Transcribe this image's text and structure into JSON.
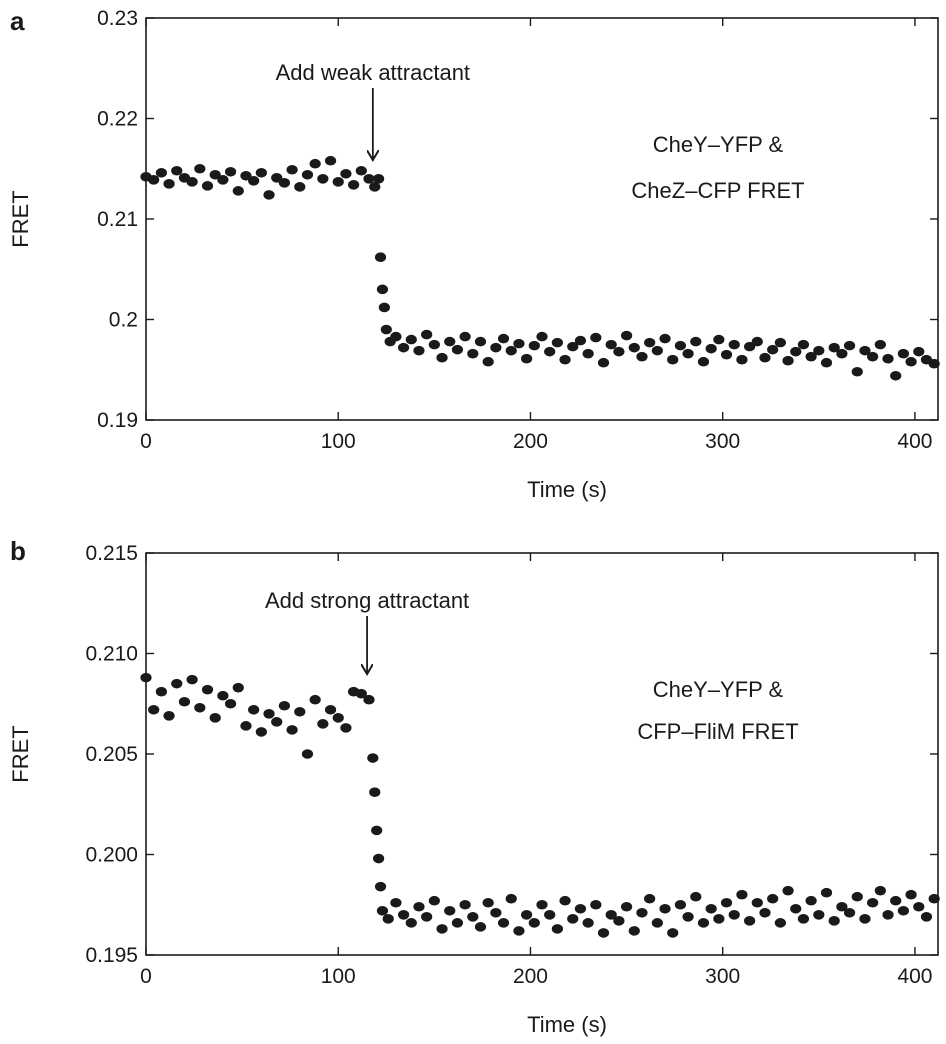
{
  "chart_data": [
    {
      "type": "scatter",
      "panel_label": "a",
      "xlabel": "Time (s)",
      "ylabel": "FRET",
      "xlim": [
        0,
        412
      ],
      "ylim": [
        0.19,
        0.23
      ],
      "xticks": [
        "0",
        "100",
        "200",
        "300",
        "400"
      ],
      "yticks": [
        "0.19",
        "0.2",
        "0.21",
        "0.22",
        "0.23"
      ],
      "annotation": "Add weak attractant",
      "annotation_x": 118,
      "legend_lines": [
        "CheY–YFP &",
        "CheZ–CFP FRET"
      ],
      "color": "#1a1a1a",
      "x": [
        0,
        4,
        8,
        12,
        16,
        20,
        24,
        28,
        32,
        36,
        40,
        44,
        48,
        52,
        56,
        60,
        64,
        68,
        72,
        76,
        80,
        84,
        88,
        92,
        96,
        100,
        104,
        108,
        112,
        116,
        119,
        121,
        122,
        123,
        124,
        125,
        127,
        130,
        134,
        138,
        142,
        146,
        150,
        154,
        158,
        162,
        166,
        170,
        174,
        178,
        182,
        186,
        190,
        194,
        198,
        202,
        206,
        210,
        214,
        218,
        222,
        226,
        230,
        234,
        238,
        242,
        246,
        250,
        254,
        258,
        262,
        266,
        270,
        274,
        278,
        282,
        286,
        290,
        294,
        298,
        302,
        306,
        310,
        314,
        318,
        322,
        326,
        330,
        334,
        338,
        342,
        346,
        350,
        354,
        358,
        362,
        366,
        370,
        374,
        378,
        382,
        386,
        390,
        394,
        398,
        402,
        406,
        410
      ],
      "y": [
        0.2142,
        0.2139,
        0.2146,
        0.2135,
        0.2148,
        0.2141,
        0.2137,
        0.215,
        0.2133,
        0.2144,
        0.2139,
        0.2147,
        0.2128,
        0.2143,
        0.2138,
        0.2146,
        0.2124,
        0.2141,
        0.2136,
        0.2149,
        0.2132,
        0.2144,
        0.2155,
        0.214,
        0.2158,
        0.2137,
        0.2145,
        0.2134,
        0.2148,
        0.214,
        0.2132,
        0.214,
        0.2062,
        0.203,
        0.2012,
        0.199,
        0.1978,
        0.1983,
        0.1972,
        0.198,
        0.1969,
        0.1985,
        0.1975,
        0.1962,
        0.1978,
        0.197,
        0.1983,
        0.1966,
        0.1978,
        0.1958,
        0.1972,
        0.1981,
        0.1969,
        0.1976,
        0.1961,
        0.1974,
        0.1983,
        0.1968,
        0.1977,
        0.196,
        0.1973,
        0.1979,
        0.1966,
        0.1982,
        0.1957,
        0.1975,
        0.1968,
        0.1984,
        0.1972,
        0.1963,
        0.1977,
        0.1969,
        0.1981,
        0.196,
        0.1974,
        0.1966,
        0.1978,
        0.1958,
        0.1971,
        0.198,
        0.1965,
        0.1975,
        0.196,
        0.1973,
        0.1978,
        0.1962,
        0.197,
        0.1977,
        0.1959,
        0.1968,
        0.1975,
        0.1963,
        0.1969,
        0.1957,
        0.1972,
        0.1966,
        0.1974,
        0.1948,
        0.1969,
        0.1963,
        0.1975,
        0.1961,
        0.1944,
        0.1966,
        0.1958,
        0.1968,
        0.196,
        0.1956
      ]
    },
    {
      "type": "scatter",
      "panel_label": "b",
      "xlabel": "Time (s)",
      "ylabel": "FRET",
      "xlim": [
        0,
        412
      ],
      "ylim": [
        0.195,
        0.215
      ],
      "xticks": [
        "0",
        "100",
        "200",
        "300",
        "400"
      ],
      "yticks": [
        "0.195",
        "0.200",
        "0.205",
        "0.210",
        "0.215"
      ],
      "annotation": "Add strong attractant",
      "annotation_x": 115,
      "legend_lines": [
        "CheY–YFP &",
        "CFP–FliM FRET"
      ],
      "color": "#1a1a1a",
      "x": [
        0,
        4,
        8,
        12,
        16,
        20,
        24,
        28,
        32,
        36,
        40,
        44,
        48,
        52,
        56,
        60,
        64,
        68,
        72,
        76,
        80,
        84,
        88,
        92,
        96,
        100,
        104,
        108,
        112,
        116,
        118,
        119,
        120,
        121,
        122,
        123,
        126,
        130,
        134,
        138,
        142,
        146,
        150,
        154,
        158,
        162,
        166,
        170,
        174,
        178,
        182,
        186,
        190,
        194,
        198,
        202,
        206,
        210,
        214,
        218,
        222,
        226,
        230,
        234,
        238,
        242,
        246,
        250,
        254,
        258,
        262,
        266,
        270,
        274,
        278,
        282,
        286,
        290,
        294,
        298,
        302,
        306,
        310,
        314,
        318,
        322,
        326,
        330,
        334,
        338,
        342,
        346,
        350,
        354,
        358,
        362,
        366,
        370,
        374,
        378,
        382,
        386,
        390,
        394,
        398,
        402,
        406,
        410
      ],
      "y": [
        0.2088,
        0.2072,
        0.2081,
        0.2069,
        0.2085,
        0.2076,
        0.2087,
        0.2073,
        0.2082,
        0.2068,
        0.2079,
        0.2075,
        0.2083,
        0.2064,
        0.2072,
        0.2061,
        0.207,
        0.2066,
        0.2074,
        0.2062,
        0.2071,
        0.205,
        0.2077,
        0.2065,
        0.2072,
        0.2068,
        0.2063,
        0.2081,
        0.208,
        0.2077,
        0.2048,
        0.2031,
        0.2012,
        0.1998,
        0.1984,
        0.1972,
        0.1968,
        0.1976,
        0.197,
        0.1966,
        0.1974,
        0.1969,
        0.1977,
        0.1963,
        0.1972,
        0.1966,
        0.1975,
        0.1969,
        0.1964,
        0.1976,
        0.1971,
        0.1966,
        0.1978,
        0.1962,
        0.197,
        0.1966,
        0.1975,
        0.197,
        0.1963,
        0.1977,
        0.1968,
        0.1973,
        0.1966,
        0.1975,
        0.1961,
        0.197,
        0.1967,
        0.1974,
        0.1962,
        0.1971,
        0.1978,
        0.1966,
        0.1973,
        0.1961,
        0.1975,
        0.1969,
        0.1979,
        0.1966,
        0.1973,
        0.1968,
        0.1976,
        0.197,
        0.198,
        0.1967,
        0.1976,
        0.1971,
        0.1978,
        0.1966,
        0.1982,
        0.1973,
        0.1968,
        0.1977,
        0.197,
        0.1981,
        0.1967,
        0.1974,
        0.1971,
        0.1979,
        0.1968,
        0.1976,
        0.1982,
        0.197,
        0.1977,
        0.1972,
        0.198,
        0.1974,
        0.1969,
        0.1978
      ]
    }
  ]
}
